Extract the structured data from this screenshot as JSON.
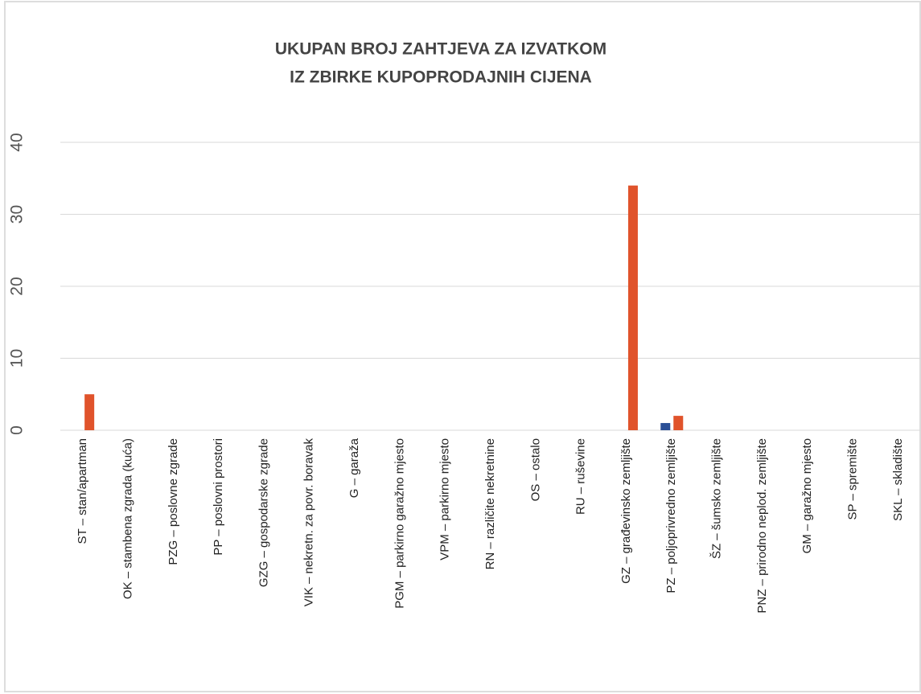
{
  "chart_data": {
    "type": "bar",
    "title": [
      "UKUPAN BROJ ZAHTJEVA ZA IZVATKOM",
      "IZ ZBIRKE KUPOPRODAJNIH CIJENA"
    ],
    "categories": [
      "ST – stan/apartman",
      "OK – stambena zgrada (kuća)",
      "PZG – poslovne zgrade",
      "PP – poslovni prostori",
      "GZG – gospodarske zgrade",
      "VIK – nekretn. za povr. boravak",
      "G – garaža",
      "PGM – parkirno garažno mjesto",
      "VPM – parkirno mjesto",
      "RN – različite nekretnine",
      "OS – ostalo",
      "RU – ruševine",
      "GZ – građevinsko zemljište",
      "PZ – poljoprivredno zemljište",
      "ŠZ – šumsko zemljište",
      "PNZ – prirodno neplod. zemljište",
      "GM – garažno mjesto",
      "SP – spremište",
      "SKL – skladište"
    ],
    "series": [
      {
        "color": "#2a4f96",
        "values": [
          0,
          0,
          0,
          0,
          0,
          0,
          0,
          0,
          0,
          0,
          0,
          0,
          0,
          1,
          0,
          0,
          0,
          0,
          0
        ]
      },
      {
        "color": "#e0532b",
        "values": [
          5,
          0,
          0,
          0,
          0,
          0,
          0,
          0,
          0,
          0,
          0,
          0,
          34,
          2,
          0,
          0,
          0,
          0,
          0
        ]
      }
    ],
    "ylim": [
      0,
      40
    ],
    "yticks": [
      0,
      10,
      20,
      30,
      40
    ],
    "grid": true
  }
}
